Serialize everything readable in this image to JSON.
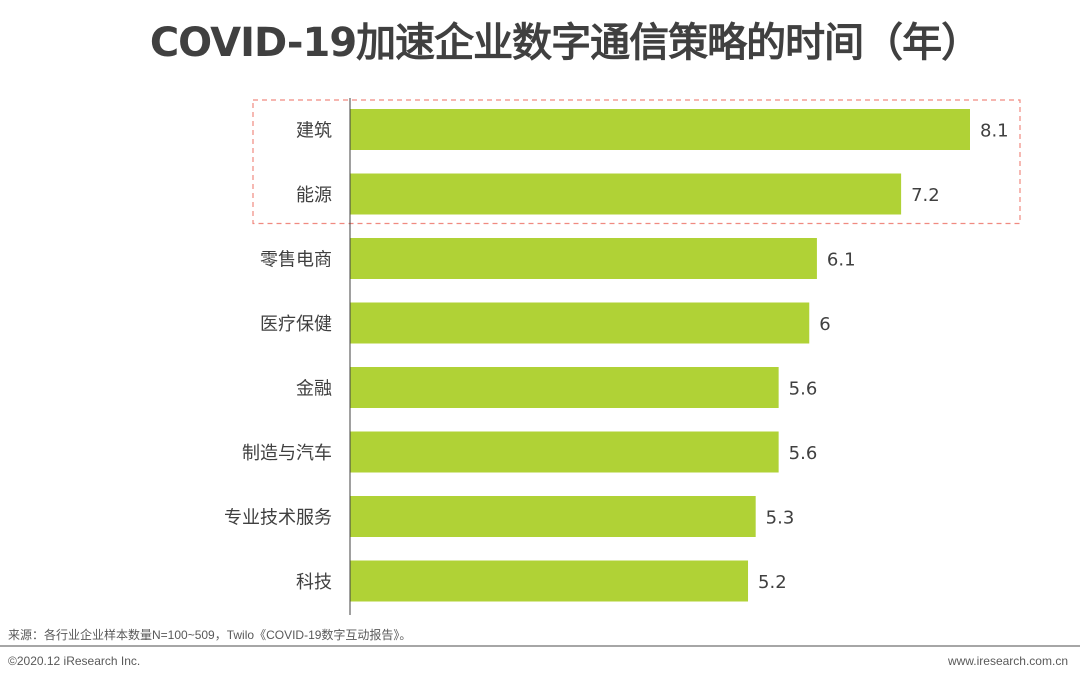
{
  "title": "COVID-19加速企业数字通信策略的时间（年）",
  "chart_data": {
    "type": "bar",
    "orientation": "horizontal",
    "categories": [
      "建筑",
      "能源",
      "零售电商",
      "医疗保健",
      "金融",
      "制造与汽车",
      "专业技术服务",
      "科技"
    ],
    "values": [
      8.1,
      7.2,
      6.1,
      6,
      5.6,
      5.6,
      5.3,
      5.2
    ],
    "value_labels": [
      "8.1",
      "7.2",
      "6.1",
      "6",
      "5.6",
      "5.6",
      "5.3",
      "5.2"
    ],
    "bar_color": "#b0d236",
    "highlight_box_color": "#f08a80",
    "highlighted_categories": [
      "建筑",
      "能源"
    ],
    "xlim": [
      0,
      8.1
    ],
    "grid": false,
    "legend": "none"
  },
  "footer": {
    "source": "来源：各行业企业样本数量N=100~509，Twilo《COVID-19数字互动报告》。",
    "copyright": "©2020.12 iResearch Inc.",
    "website": "www.iresearch.com.cn"
  }
}
